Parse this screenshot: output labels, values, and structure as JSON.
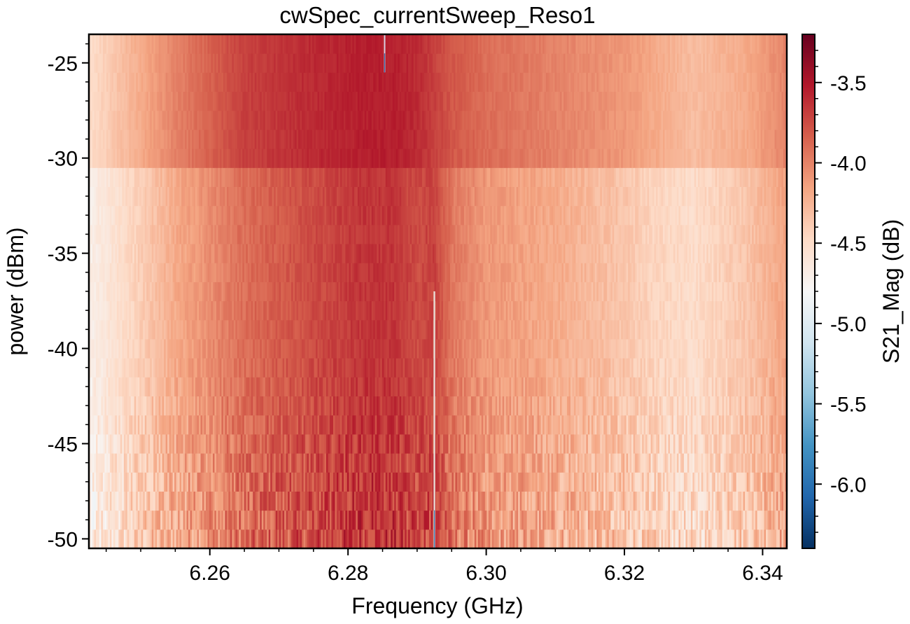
{
  "chart_data": {
    "type": "heatmap",
    "title": "cwSpec_currentSweep_Reso1",
    "xlabel": "Frequency (GHz)",
    "ylabel": "power (dBm)",
    "colorbar_label": "S21_Mag (dB)",
    "colormap": "RdBu_r",
    "xlim": [
      6.2425,
      6.3435
    ],
    "ylim": [
      -50.5,
      -23.5
    ],
    "clim": [
      -6.4,
      -3.2
    ],
    "x_ticks": [
      6.26,
      6.28,
      6.3,
      6.32,
      6.34
    ],
    "x_tick_labels": [
      "6.26",
      "6.28",
      "6.30",
      "6.32",
      "6.34"
    ],
    "y_ticks": [
      -25,
      -30,
      -35,
      -40,
      -45,
      -50
    ],
    "y_tick_labels": [
      "-25",
      "-30",
      "-35",
      "-40",
      "-45",
      "-50"
    ],
    "colorbar_ticks": [
      -3.5,
      -4.0,
      -4.5,
      -5.0,
      -5.5,
      -6.0
    ],
    "colorbar_tick_labels": [
      "-3.5",
      "-4.0",
      "-4.5",
      "-5.0",
      "-5.5",
      "-6.0"
    ],
    "power_rows_dBm": [
      -50,
      -49,
      -48,
      -47,
      -46,
      -45,
      -44,
      -43,
      -42,
      -41,
      -40,
      -39,
      -38,
      -37,
      -36,
      -35,
      -34,
      -33,
      -32,
      -31,
      -30,
      -29,
      -28,
      -27,
      -26,
      -25,
      -24
    ],
    "frequency_profile_GHz": [
      6.2425,
      6.2475,
      6.255,
      6.265,
      6.275,
      6.282,
      6.2865,
      6.29,
      6.2925,
      6.295,
      6.3,
      6.31,
      6.32,
      6.325,
      6.33,
      6.3375,
      6.3435
    ],
    "magnitude_profile_high_power_dB": [
      -4.5,
      -4.3,
      -4.0,
      -3.7,
      -3.6,
      -3.55,
      -3.55,
      -3.6,
      -3.7,
      -3.8,
      -3.9,
      -4.0,
      -4.1,
      -4.2,
      -4.3,
      -4.2,
      -4.0
    ],
    "magnitude_profile_low_power_dB": [
      -4.7,
      -4.5,
      -4.2,
      -3.9,
      -3.75,
      -3.65,
      -3.65,
      -3.75,
      -3.7,
      -3.95,
      -4.1,
      -4.2,
      -4.35,
      -4.45,
      -4.5,
      -4.35,
      -4.15
    ],
    "step_power_dBm": -30.5,
    "resonance_line_GHz": 6.2925,
    "resonance_line_power_range_dBm": [
      -50.5,
      -37
    ],
    "artifact_line_GHz": 6.2853,
    "artifact_line_power_range_dBm": [
      -25.5,
      -23.5
    ]
  }
}
